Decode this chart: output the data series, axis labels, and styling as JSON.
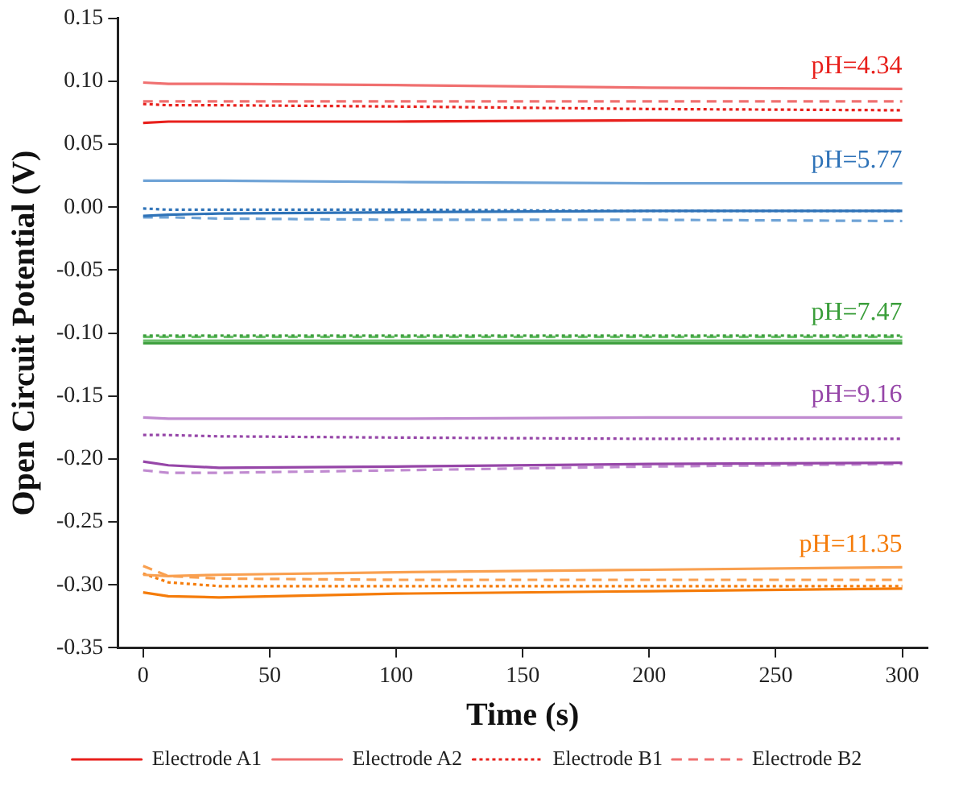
{
  "chart_data": {
    "type": "line",
    "xlabel": "Time (s)",
    "ylabel": "Open Circuit Potential (V)",
    "x": [
      0,
      10,
      30,
      100,
      200,
      300
    ],
    "xlim": [
      -10,
      310
    ],
    "xticks": [
      0,
      50,
      100,
      150,
      200,
      250,
      300
    ],
    "ylim": [
      -0.35,
      0.15
    ],
    "yticks": [
      {
        "value": -0.35,
        "label": "-0.35"
      },
      {
        "value": -0.3,
        "label": "-0.30"
      },
      {
        "value": -0.25,
        "label": "-0.25"
      },
      {
        "value": -0.2,
        "label": "-0.20"
      },
      {
        "value": -0.15,
        "label": "-0.15"
      },
      {
        "value": -0.1,
        "label": "-0.10"
      },
      {
        "value": -0.05,
        "label": "-0.05"
      },
      {
        "value": 0,
        "label": "0.00"
      },
      {
        "value": 0.05,
        "label": "0.05"
      },
      {
        "value": 0.1,
        "label": "0.10"
      },
      {
        "value": 0.15,
        "label": "0.15"
      }
    ],
    "grid": false,
    "legend": "bottom",
    "marker": "none",
    "series": [
      {
        "name": "Electrode A1",
        "color": "#e8201c",
        "line_style": "solid",
        "values": [
          0.067,
          0.068,
          0.068,
          0.068,
          0.069,
          0.069
        ]
      },
      {
        "name": "Electrode A2",
        "color": "#f07070",
        "line_style": "solid",
        "values": [
          0.099,
          0.098,
          0.098,
          0.097,
          0.095,
          0.094
        ]
      },
      {
        "name": "Electrode B1",
        "color": "#e8201c",
        "line_style": "dotted",
        "values": [
          0.082,
          0.081,
          0.081,
          0.08,
          0.078,
          0.077
        ]
      },
      {
        "name": "Electrode B2",
        "color": "#f07070",
        "line_style": "dashed",
        "values": [
          0.084,
          0.084,
          0.084,
          0.084,
          0.084,
          0.084
        ]
      },
      {
        "color": "#2f73b8",
        "line_style": "solid",
        "values": [
          -0.007,
          -0.006,
          -0.005,
          -0.004,
          -0.003,
          -0.003
        ]
      },
      {
        "color": "#6fa3d6",
        "line_style": "solid",
        "values": [
          0.021,
          0.021,
          0.021,
          0.02,
          0.019,
          0.019
        ]
      },
      {
        "color": "#2f73b8",
        "line_style": "dotted",
        "values": [
          -0.001,
          -0.002,
          -0.002,
          -0.002,
          -0.003,
          -0.003
        ]
      },
      {
        "color": "#6fa3d6",
        "line_style": "dashed",
        "values": [
          -0.008,
          -0.008,
          -0.009,
          -0.01,
          -0.01,
          -0.011
        ]
      },
      {
        "color": "#3a9e3a",
        "line_style": "solid",
        "values": [
          -0.108,
          -0.108,
          -0.108,
          -0.108,
          -0.108,
          -0.108
        ]
      },
      {
        "color": "#6cc06c",
        "line_style": "solid",
        "values": [
          -0.106,
          -0.106,
          -0.106,
          -0.106,
          -0.106,
          -0.106
        ]
      },
      {
        "color": "#3a9e3a",
        "line_style": "dotted",
        "values": [
          -0.102,
          -0.102,
          -0.102,
          -0.102,
          -0.102,
          -0.102
        ]
      },
      {
        "color": "#6cc06c",
        "line_style": "dashed",
        "values": [
          -0.103,
          -0.103,
          -0.103,
          -0.103,
          -0.103,
          -0.103
        ]
      },
      {
        "color": "#9646a8",
        "line_style": "solid",
        "values": [
          -0.202,
          -0.205,
          -0.207,
          -0.206,
          -0.204,
          -0.203
        ]
      },
      {
        "color": "#c08ad0",
        "line_style": "solid",
        "values": [
          -0.167,
          -0.168,
          -0.168,
          -0.168,
          -0.167,
          -0.167
        ]
      },
      {
        "color": "#9646a8",
        "line_style": "dotted",
        "values": [
          -0.181,
          -0.181,
          -0.182,
          -0.183,
          -0.184,
          -0.184
        ]
      },
      {
        "color": "#c08ad0",
        "line_style": "dashed",
        "values": [
          -0.209,
          -0.211,
          -0.211,
          -0.209,
          -0.206,
          -0.204
        ]
      },
      {
        "color": "#f57c0a",
        "line_style": "solid",
        "values": [
          -0.306,
          -0.309,
          -0.31,
          -0.307,
          -0.305,
          -0.303
        ]
      },
      {
        "color": "#f9a050",
        "line_style": "solid",
        "values": [
          -0.292,
          -0.293,
          -0.292,
          -0.29,
          -0.288,
          -0.286
        ]
      },
      {
        "color": "#f57c0a",
        "line_style": "dotted",
        "values": [
          -0.291,
          -0.298,
          -0.301,
          -0.301,
          -0.301,
          -0.301
        ]
      },
      {
        "color": "#f9a050",
        "line_style": "dashed",
        "values": [
          -0.285,
          -0.293,
          -0.295,
          -0.296,
          -0.296,
          -0.296
        ]
      }
    ],
    "annotations": [
      "pH=4.34",
      "pH=5.77",
      "pH=7.47",
      "pH=9.16",
      "pH=11.35"
    ]
  }
}
